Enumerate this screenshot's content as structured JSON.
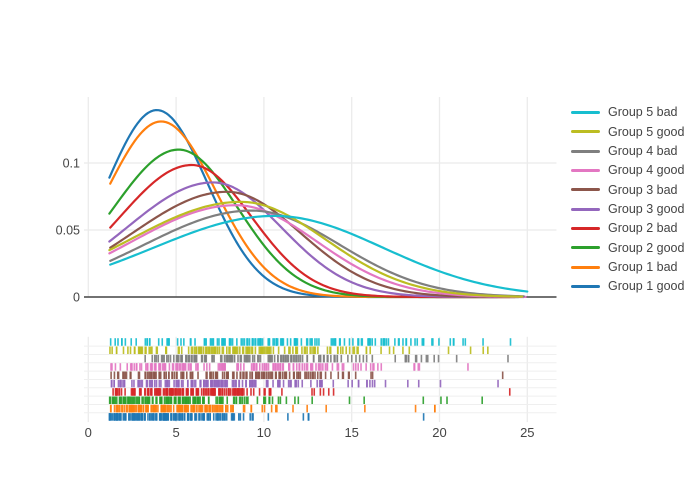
{
  "figure": {
    "background": "#ffffff",
    "grid_color": "#ebebeb",
    "rug_grid_color": "#efefef",
    "zeroline_color": "#444444",
    "tick_label_color": "#444444",
    "legend_text_color": "#444444"
  },
  "axes": {
    "x": {
      "tick_values": [
        0,
        5,
        10,
        15,
        20,
        25
      ],
      "tick_labels": [
        "0",
        "5",
        "10",
        "15",
        "20",
        "25"
      ],
      "range": [
        -0.25,
        26.7
      ]
    },
    "y": {
      "tick_values": [
        0,
        0.05,
        0.1
      ],
      "tick_labels": [
        "0",
        "0.05",
        "0.1"
      ],
      "range": [
        0,
        0.1475
      ]
    }
  },
  "legend": {
    "items": [
      {
        "label": "Group 5 bad",
        "color": "#17becf"
      },
      {
        "label": "Group 5 good",
        "color": "#bcbd22"
      },
      {
        "label": "Group 4 bad",
        "color": "#7f7f7f"
      },
      {
        "label": "Group 4 good",
        "color": "#e377c2"
      },
      {
        "label": "Group 3 bad",
        "color": "#8c564b"
      },
      {
        "label": "Group 3 good",
        "color": "#9467bd"
      },
      {
        "label": "Group 2 bad",
        "color": "#d62728"
      },
      {
        "label": "Group 2 good",
        "color": "#2ca02c"
      },
      {
        "label": "Group 1 bad",
        "color": "#ff7f0e"
      },
      {
        "label": "Group 1 good",
        "color": "#1f77b4"
      }
    ]
  },
  "chart_data": {
    "type": "line",
    "subtype": "distplot-kde-with-rug",
    "title": "",
    "xlabel": "",
    "ylabel": "",
    "xlim": [
      -0.25,
      26.7
    ],
    "ylim": [
      0,
      0.1475
    ],
    "grid": true,
    "legend_position": "right",
    "series": [
      {
        "name": "Group 1 good",
        "color": "#1f77b4",
        "curve": {
          "peak_x": 3.9,
          "peak_y": 0.1395,
          "sigma_left": 2.85,
          "sigma_right": 2.9,
          "x_start": 1.2,
          "x_end": 23.3
        },
        "rug": {
          "n": 140,
          "outlier_fraction": 0.05,
          "seed": 11
        }
      },
      {
        "name": "Group 1 bad",
        "color": "#ff7f0e",
        "curve": {
          "peak_x": 4.15,
          "peak_y": 0.131,
          "sigma_left": 3.1,
          "sigma_right": 3.1,
          "x_start": 1.25,
          "x_end": 24.0
        },
        "rug": {
          "n": 140,
          "outlier_fraction": 0.05,
          "seed": 23
        }
      },
      {
        "name": "Group 2 good",
        "color": "#2ca02c",
        "curve": {
          "peak_x": 5.15,
          "peak_y": 0.11,
          "sigma_left": 3.7,
          "sigma_right": 3.35,
          "x_start": 1.2,
          "x_end": 24.5
        },
        "rug": {
          "n": 140,
          "outlier_fraction": 0.05,
          "seed": 37
        }
      },
      {
        "name": "Group 2 bad",
        "color": "#d62728",
        "curve": {
          "peak_x": 5.9,
          "peak_y": 0.0985,
          "sigma_left": 4.1,
          "sigma_right": 3.4,
          "x_start": 1.25,
          "x_end": 24.3
        },
        "rug": {
          "n": 140,
          "outlier_fraction": 0.05,
          "seed": 41
        }
      },
      {
        "name": "Group 3 good",
        "color": "#9467bd",
        "curve": {
          "peak_x": 7.1,
          "peak_y": 0.0855,
          "sigma_left": 4.9,
          "sigma_right": 3.9,
          "x_start": 1.2,
          "x_end": 24.8
        },
        "rug": {
          "n": 140,
          "outlier_fraction": 0.05,
          "seed": 53
        }
      },
      {
        "name": "Group 3 bad",
        "color": "#8c564b",
        "curve": {
          "peak_x": 7.9,
          "peak_y": 0.0785,
          "sigma_left": 5.4,
          "sigma_right": 4.2,
          "x_start": 1.25,
          "x_end": 24.6
        },
        "rug": {
          "n": 140,
          "outlier_fraction": 0.05,
          "seed": 67
        }
      },
      {
        "name": "Group 4 good",
        "color": "#e377c2",
        "curve": {
          "peak_x": 8.4,
          "peak_y": 0.0685,
          "sigma_left": 5.9,
          "sigma_right": 4.6,
          "x_start": 1.2,
          "x_end": 24.9
        },
        "rug": {
          "n": 140,
          "outlier_fraction": 0.05,
          "seed": 71
        }
      },
      {
        "name": "Group 4 bad",
        "color": "#7f7f7f",
        "curve": {
          "peak_x": 9.3,
          "peak_y": 0.0645,
          "sigma_left": 6.1,
          "sigma_right": 5.0,
          "x_start": 1.25,
          "x_end": 24.8
        },
        "rug": {
          "n": 140,
          "outlier_fraction": 0.05,
          "seed": 83
        }
      },
      {
        "name": "Group 5 good",
        "color": "#bcbd22",
        "curve": {
          "peak_x": 8.7,
          "peak_y": 0.071,
          "sigma_left": 6.3,
          "sigma_right": 4.8,
          "x_start": 1.2,
          "x_end": 24.7
        },
        "rug": {
          "n": 140,
          "outlier_fraction": 0.05,
          "seed": 89
        }
      },
      {
        "name": "Group 5 bad",
        "color": "#17becf",
        "curve": {
          "peak_x": 10.6,
          "peak_y": 0.0605,
          "sigma_left": 6.9,
          "sigma_right": 6.2,
          "x_start": 1.25,
          "x_end": 25.0
        },
        "rug": {
          "n": 140,
          "outlier_fraction": 0.05,
          "seed": 97
        }
      }
    ]
  }
}
